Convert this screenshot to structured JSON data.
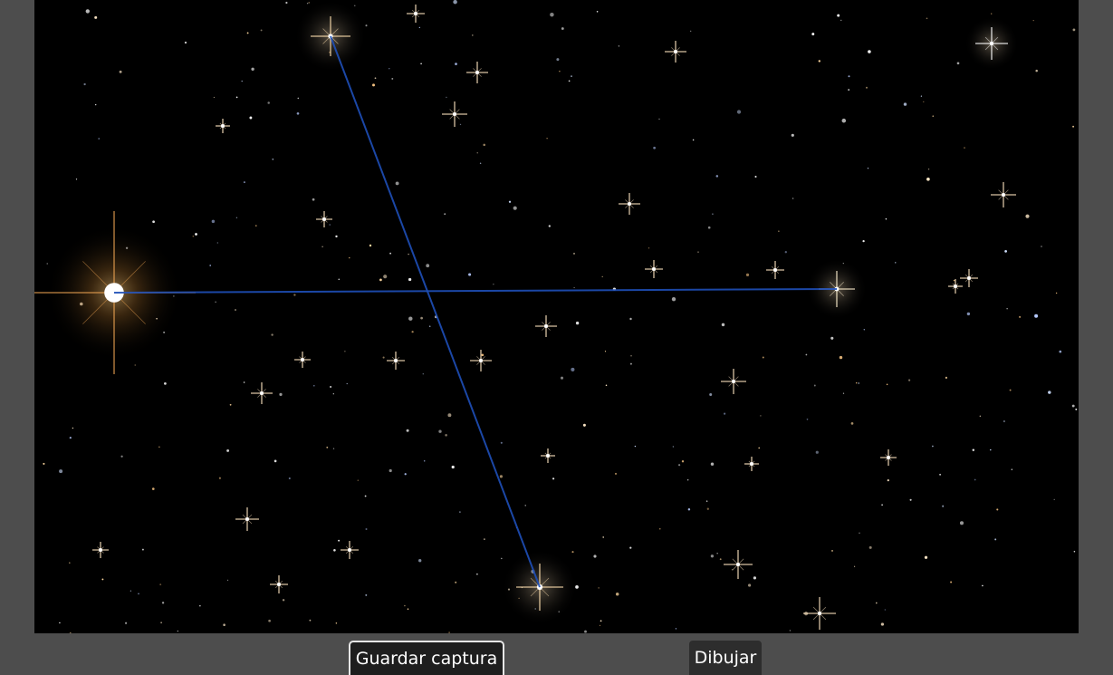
{
  "buttons": {
    "save_capture": "Guardar captura",
    "draw": "Dibujar"
  },
  "colors": {
    "background": "#4d4d4d",
    "sky": "#000000",
    "constellation_line": "#1f4fb8",
    "warm_star": "#ffd9a0",
    "cool_star": "#cfe0ff"
  }
}
